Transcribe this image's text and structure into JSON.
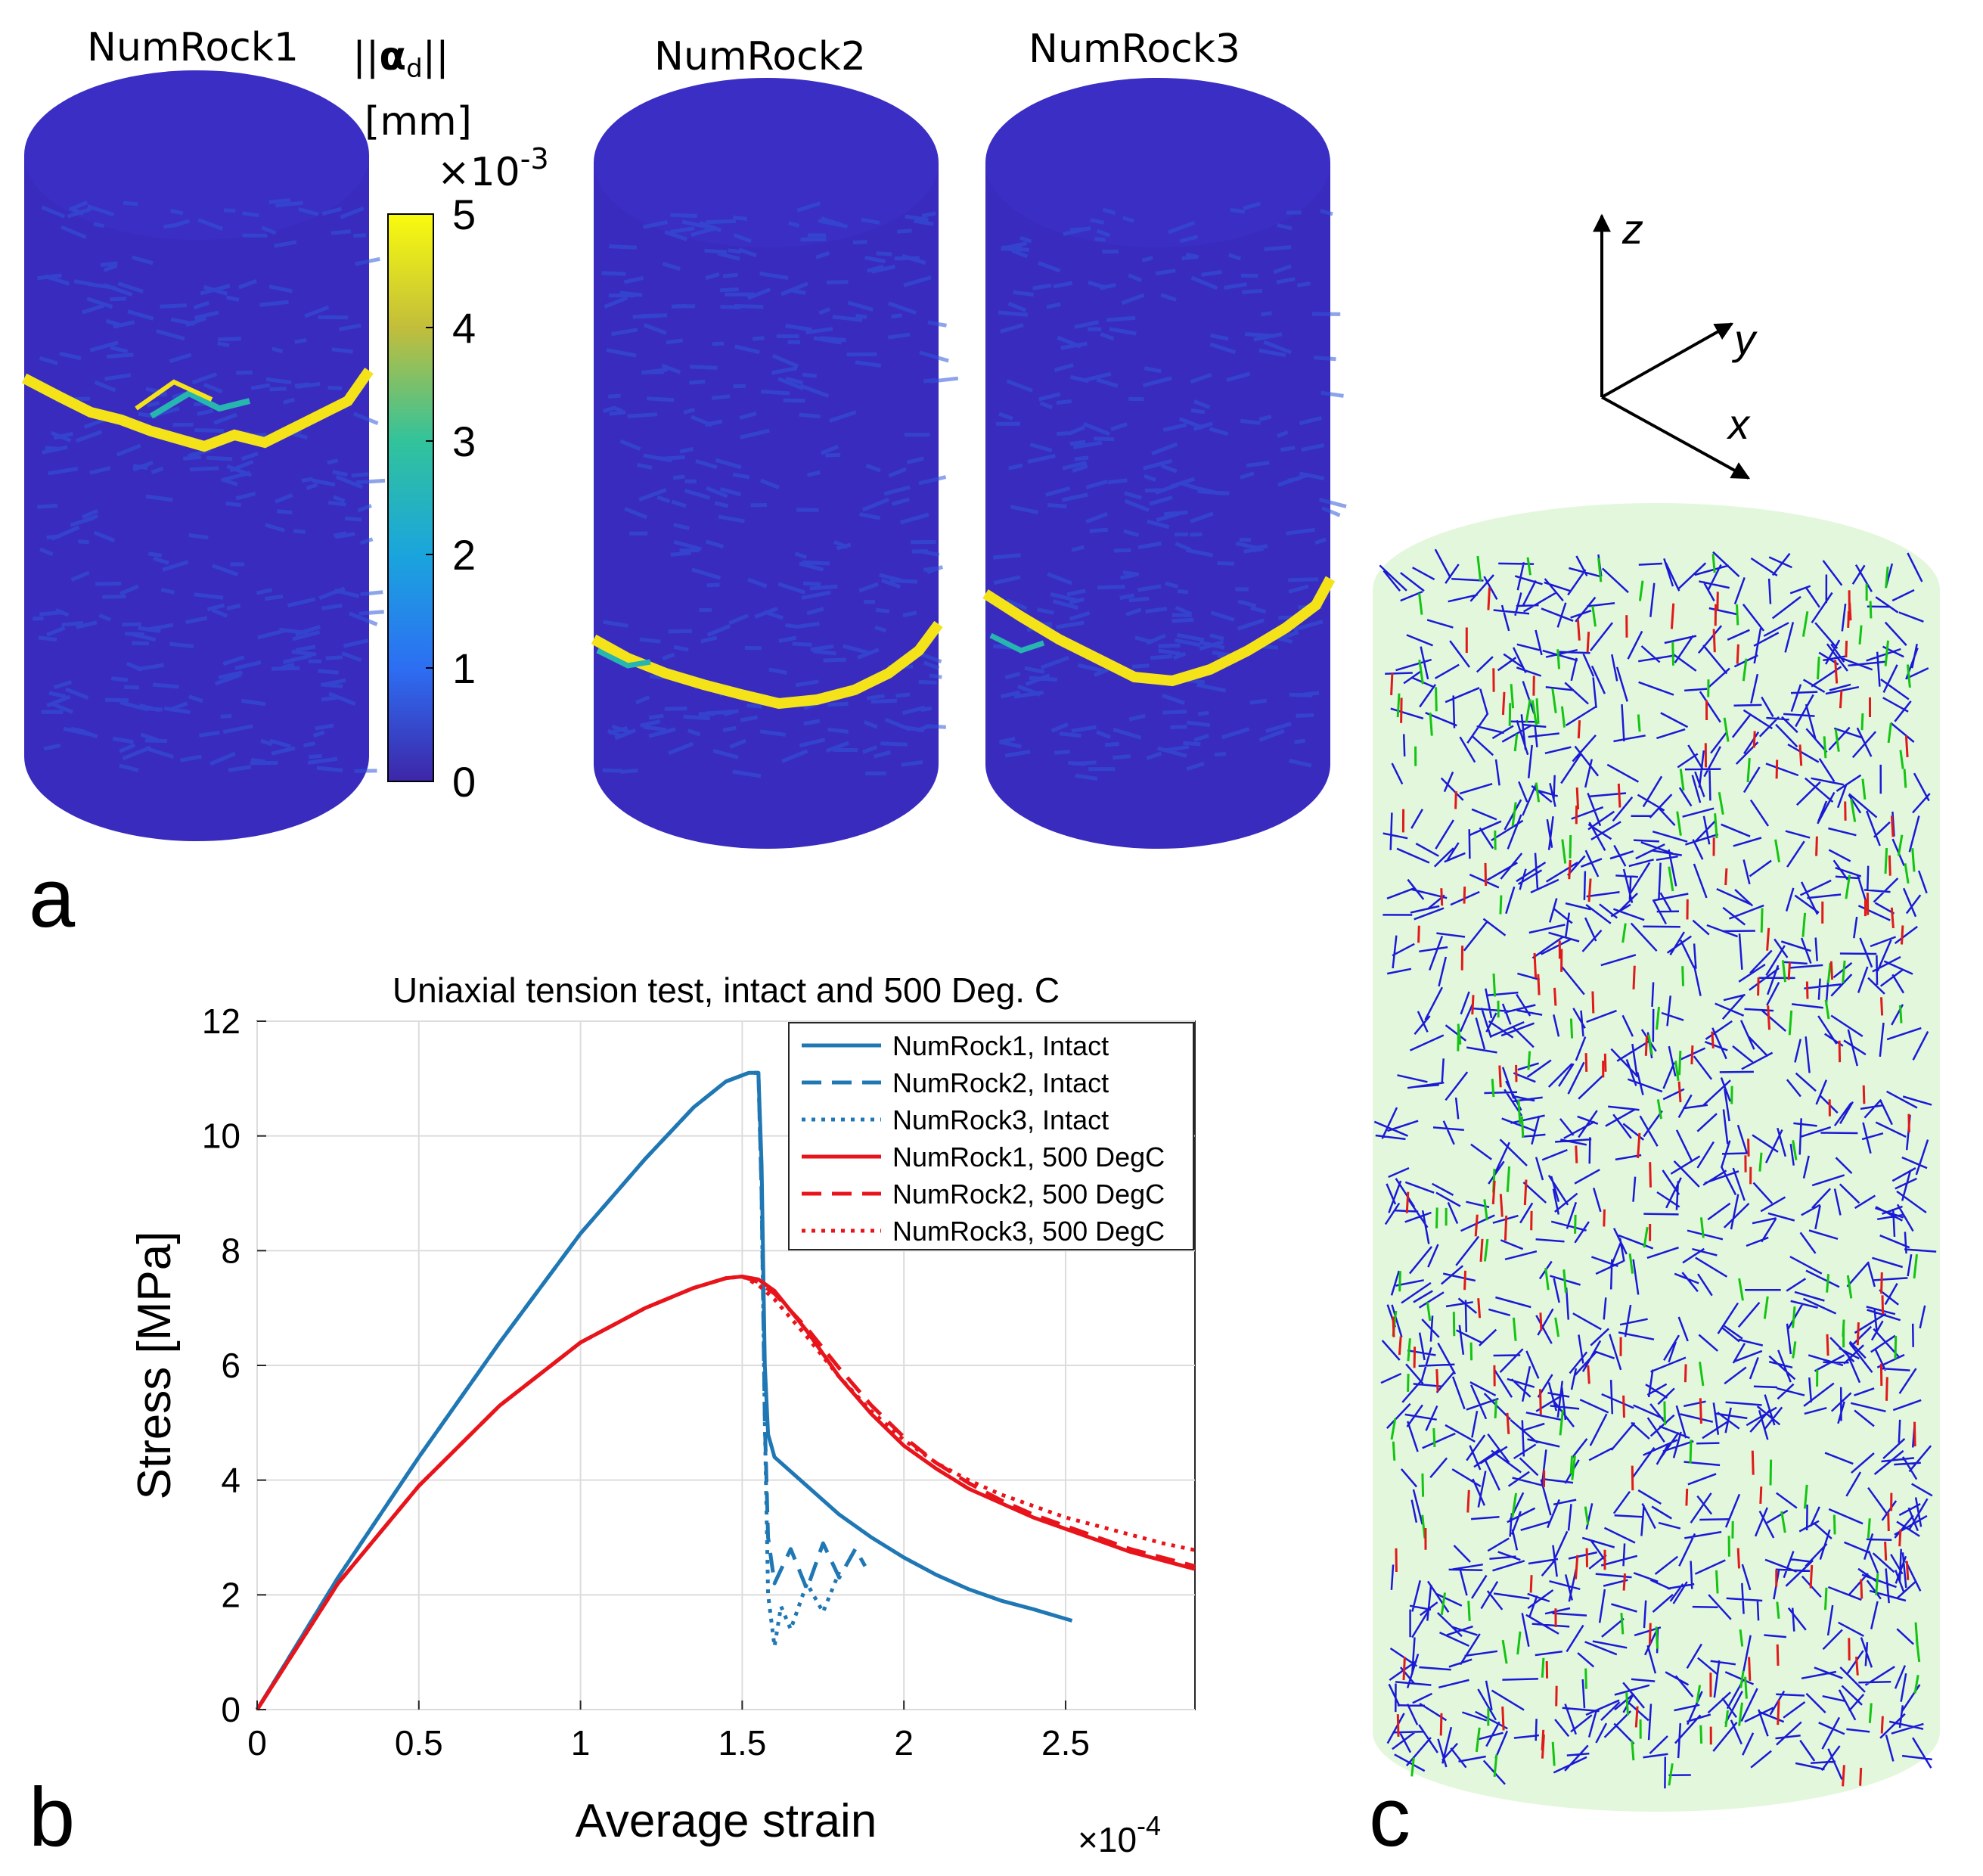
{
  "panel_a": {
    "panel_letter": "a",
    "rock_titles": [
      "NumRock1",
      "NumRock2",
      "NumRock3"
    ],
    "colorbar": {
      "label_line1": "||αd||",
      "label_symbol": "α",
      "label_subscript": "d",
      "label_line2": "[mm]",
      "multiplier_base": "×10",
      "multiplier_exp": "-3",
      "ticks": [
        "5",
        "4",
        "3",
        "2",
        "1",
        "0"
      ],
      "range": [
        0,
        5
      ]
    },
    "colors": {
      "cylinder": "#3a2bbf",
      "crack": "#f5e31a",
      "crack_mid": "#27b5b0"
    }
  },
  "panel_b": {
    "panel_letter": "b",
    "x_multiplier_base": "×10",
    "x_multiplier_exp": "-4"
  },
  "panel_c": {
    "panel_letter": "c",
    "axes_labels": {
      "z": "z",
      "y": "y",
      "x": "x"
    },
    "colors": {
      "background": "#e3f7dc",
      "blue": "#1a1ad6",
      "green": "#13c413",
      "red": "#e01a1a"
    }
  },
  "chart_data": {
    "type": "line",
    "title": "Uniaxial tension test, intact and 500 Deg. C",
    "xlabel": "Average strain",
    "ylabel": "Stress [MPa]",
    "xlim": [
      0,
      2.9
    ],
    "ylim": [
      0,
      12
    ],
    "xticks": [
      "0",
      "0.5",
      "1",
      "1.5",
      "2",
      "2.5"
    ],
    "yticks": [
      "0",
      "2",
      "4",
      "6",
      "8",
      "10",
      "12"
    ],
    "grid": true,
    "legend_position": "top-right",
    "series": [
      {
        "name": "NumRock1, Intact",
        "color": "#1f77b4",
        "style": "solid",
        "x": [
          0,
          0.25,
          0.5,
          0.75,
          1.0,
          1.2,
          1.35,
          1.45,
          1.52,
          1.55,
          1.56,
          1.57,
          1.58,
          1.6,
          1.7,
          1.8,
          1.9,
          2.0,
          2.1,
          2.2,
          2.3,
          2.4,
          2.52
        ],
        "y": [
          0,
          2.3,
          4.4,
          6.4,
          8.3,
          9.6,
          10.5,
          10.95,
          11.1,
          11.1,
          9.5,
          6.0,
          4.8,
          4.4,
          3.9,
          3.4,
          3.0,
          2.65,
          2.35,
          2.1,
          1.9,
          1.75,
          1.55
        ]
      },
      {
        "name": "NumRock2, Intact",
        "color": "#1f77b4",
        "style": "dashed",
        "x": [
          0,
          0.25,
          0.5,
          0.75,
          1.0,
          1.2,
          1.35,
          1.45,
          1.52,
          1.55,
          1.56,
          1.57,
          1.58,
          1.6,
          1.65,
          1.7,
          1.75,
          1.8,
          1.85,
          1.88
        ],
        "y": [
          0,
          2.3,
          4.4,
          6.4,
          8.3,
          9.6,
          10.5,
          10.95,
          11.1,
          11.1,
          9.0,
          5.0,
          3.0,
          2.2,
          2.8,
          2.1,
          2.9,
          2.3,
          2.8,
          2.5
        ]
      },
      {
        "name": "NumRock3, Intact",
        "color": "#1f77b4",
        "style": "dotted",
        "x": [
          0,
          0.25,
          0.5,
          0.75,
          1.0,
          1.2,
          1.35,
          1.45,
          1.52,
          1.55,
          1.56,
          1.57,
          1.58,
          1.6,
          1.62,
          1.65,
          1.7,
          1.75,
          1.8
        ],
        "y": [
          0,
          2.3,
          4.4,
          6.4,
          8.3,
          9.6,
          10.5,
          10.95,
          11.1,
          11.1,
          9.0,
          5.0,
          2.0,
          1.1,
          1.8,
          1.4,
          2.2,
          1.7,
          2.4
        ]
      },
      {
        "name": "NumRock1, 500 DegC",
        "color": "#e8141b",
        "style": "solid",
        "x": [
          0,
          0.25,
          0.5,
          0.75,
          1.0,
          1.2,
          1.35,
          1.45,
          1.5,
          1.55,
          1.6,
          1.7,
          1.8,
          1.9,
          2.0,
          2.1,
          2.2,
          2.3,
          2.4,
          2.5,
          2.6,
          2.7,
          2.8,
          2.9
        ],
        "y": [
          0,
          2.2,
          3.9,
          5.3,
          6.4,
          7.0,
          7.35,
          7.52,
          7.55,
          7.5,
          7.3,
          6.6,
          5.8,
          5.15,
          4.6,
          4.2,
          3.85,
          3.6,
          3.35,
          3.15,
          2.95,
          2.75,
          2.6,
          2.45
        ]
      },
      {
        "name": "NumRock2, 500 DegC",
        "color": "#e8141b",
        "style": "dashed",
        "x": [
          0,
          0.25,
          0.5,
          0.75,
          1.0,
          1.2,
          1.35,
          1.45,
          1.5,
          1.55,
          1.6,
          1.7,
          1.8,
          1.9,
          2.0,
          2.1,
          2.2,
          2.3,
          2.4,
          2.5,
          2.6,
          2.7,
          2.8,
          2.9
        ],
        "y": [
          0,
          2.2,
          3.9,
          5.3,
          6.4,
          7.0,
          7.35,
          7.52,
          7.55,
          7.45,
          7.25,
          6.65,
          5.95,
          5.3,
          4.75,
          4.3,
          3.95,
          3.65,
          3.4,
          3.2,
          3.0,
          2.8,
          2.65,
          2.5
        ]
      },
      {
        "name": "NumRock3, 500 DegC",
        "color": "#e8141b",
        "style": "dotted",
        "x": [
          0,
          0.25,
          0.5,
          0.75,
          1.0,
          1.2,
          1.35,
          1.45,
          1.5,
          1.55,
          1.6,
          1.7,
          1.8,
          1.9,
          2.0,
          2.1,
          2.2,
          2.3,
          2.4,
          2.5,
          2.6,
          2.7,
          2.8,
          2.9
        ],
        "y": [
          0,
          2.2,
          3.9,
          5.3,
          6.4,
          7.0,
          7.35,
          7.52,
          7.55,
          7.4,
          7.15,
          6.5,
          5.8,
          5.2,
          4.7,
          4.3,
          4.0,
          3.75,
          3.55,
          3.35,
          3.2,
          3.05,
          2.9,
          2.78
        ]
      }
    ]
  }
}
